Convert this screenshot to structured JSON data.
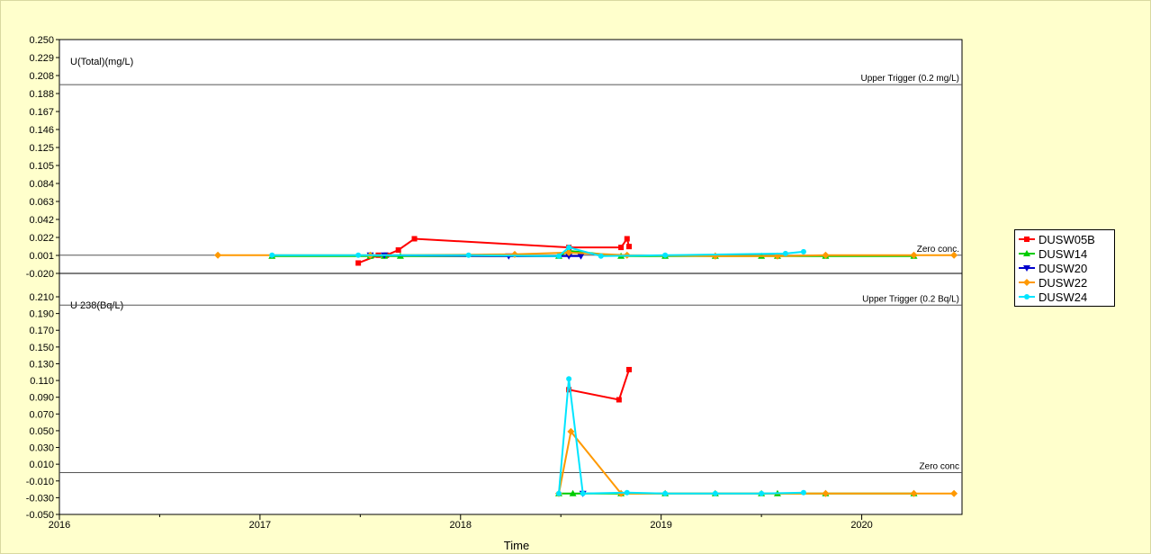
{
  "chart_data": [
    {
      "type": "line",
      "title": "U(Total)(mg/L)",
      "xlabel": "Time",
      "ylabel": "",
      "ylim": [
        -0.02,
        0.25
      ],
      "yticks": [
        "0.250",
        "0.229",
        "0.208",
        "0.188",
        "0.167",
        "0.146",
        "0.125",
        "0.105",
        "0.084",
        "0.063",
        "0.042",
        "0.022",
        "0.001",
        "-0.020"
      ],
      "reference_lines": [
        {
          "label": "Upper Trigger (0.2 mg/L)",
          "y": 0.198
        },
        {
          "label": "Zero conc.",
          "y": 0.001
        }
      ],
      "series": [
        {
          "name": "DUSW05B",
          "color": "#ff0000",
          "marker": "square",
          "x": [
            2017.49,
            2017.59,
            2017.63,
            2017.69,
            2017.77,
            2018.54,
            2018.8,
            2018.83,
            2018.84
          ],
          "y": [
            -0.008,
            0.001,
            0.001,
            0.007,
            0.02,
            0.01,
            0.01,
            0.02,
            0.011
          ]
        },
        {
          "name": "DUSW14",
          "color": "#00cc00",
          "marker": "triangle-up",
          "x": [
            2017.06,
            2017.55,
            2017.62,
            2017.7,
            2018.49,
            2018.54,
            2018.8,
            2019.02,
            2019.27,
            2019.5,
            2019.58,
            2019.82,
            2020.26
          ],
          "y": [
            0.0,
            0.0,
            0.0,
            0.0,
            0.0,
            0.006,
            0.0,
            0.0,
            0.0,
            0.0,
            0.0,
            0.0,
            0.0
          ]
        },
        {
          "name": "DUSW20",
          "color": "#0000cc",
          "marker": "triangle-down",
          "x": [
            2017.55,
            2017.62,
            2018.24,
            2018.54,
            2018.6
          ],
          "y": [
            0.001,
            0.001,
            0.0,
            0.0,
            0.0
          ]
        },
        {
          "name": "DUSW22",
          "color": "#ff9900",
          "marker": "diamond",
          "x": [
            2016.79,
            2017.55,
            2018.27,
            2018.54,
            2018.83,
            2019.27,
            2019.58,
            2019.82,
            2020.26,
            2020.46
          ],
          "y": [
            0.001,
            0.001,
            0.002,
            0.004,
            0.001,
            0.0,
            0.0,
            0.001,
            0.001,
            0.001
          ]
        },
        {
          "name": "DUSW24",
          "color": "#00e5ff",
          "marker": "circle",
          "x": [
            2017.06,
            2017.49,
            2018.04,
            2018.49,
            2018.54,
            2018.7,
            2019.02,
            2019.62,
            2019.71
          ],
          "y": [
            0.001,
            0.001,
            0.001,
            0.0,
            0.01,
            0.0,
            0.001,
            0.003,
            0.005
          ]
        }
      ]
    },
    {
      "type": "line",
      "title": "U 238(Bq/L)",
      "xlabel": "Time",
      "ylabel": "",
      "ylim": [
        -0.05,
        0.22
      ],
      "yticks": [
        "0.210",
        "0.190",
        "0.170",
        "0.150",
        "0.130",
        "0.110",
        "0.090",
        "0.070",
        "0.050",
        "0.030",
        "0.010",
        "-0.010",
        "-0.030",
        "-0.050"
      ],
      "xticks": [
        "2016",
        "2017",
        "2018",
        "2019",
        "2020"
      ],
      "xlim": [
        2016.0,
        2020.5
      ],
      "reference_lines": [
        {
          "label": "Upper Trigger (0.2 Bq/L)",
          "y": 0.2
        },
        {
          "label": "Zero conc",
          "y": 0.0
        }
      ],
      "series": [
        {
          "name": "DUSW05B",
          "color": "#ff0000",
          "marker": "square",
          "x": [
            2018.54,
            2018.79,
            2018.84
          ],
          "y": [
            0.099,
            0.087,
            0.123
          ]
        },
        {
          "name": "DUSW14",
          "color": "#00cc00",
          "marker": "triangle-up",
          "x": [
            2018.49,
            2018.56,
            2018.8,
            2019.02,
            2019.27,
            2019.5,
            2019.58,
            2019.82,
            2020.26
          ],
          "y": [
            -0.025,
            -0.025,
            -0.025,
            -0.025,
            -0.025,
            -0.025,
            -0.025,
            -0.025,
            -0.025
          ]
        },
        {
          "name": "DUSW20",
          "color": "#0000cc",
          "marker": "triangle-down",
          "x": [
            2018.61
          ],
          "y": [
            -0.025
          ]
        },
        {
          "name": "DUSW22",
          "color": "#ff9900",
          "marker": "diamond",
          "x": [
            2018.49,
            2018.55,
            2018.8,
            2019.82,
            2020.26,
            2020.46
          ],
          "y": [
            -0.025,
            0.049,
            -0.025,
            -0.025,
            -0.025,
            -0.025
          ]
        },
        {
          "name": "DUSW24",
          "color": "#00e5ff",
          "marker": "circle",
          "x": [
            2018.49,
            2018.54,
            2018.61,
            2018.83,
            2019.02,
            2019.27,
            2019.5,
            2019.71
          ],
          "y": [
            -0.025,
            0.112,
            -0.025,
            -0.024,
            -0.025,
            -0.025,
            -0.025,
            -0.024
          ]
        }
      ]
    }
  ],
  "legend": {
    "placement": "right",
    "items": [
      {
        "label": "DUSW05B",
        "color": "#ff0000"
      },
      {
        "label": "DUSW14",
        "color": "#00cc00"
      },
      {
        "label": "DUSW20",
        "color": "#0000cc"
      },
      {
        "label": "DUSW22",
        "color": "#ff9900"
      },
      {
        "label": "DUSW24",
        "color": "#00e5ff"
      }
    ]
  }
}
